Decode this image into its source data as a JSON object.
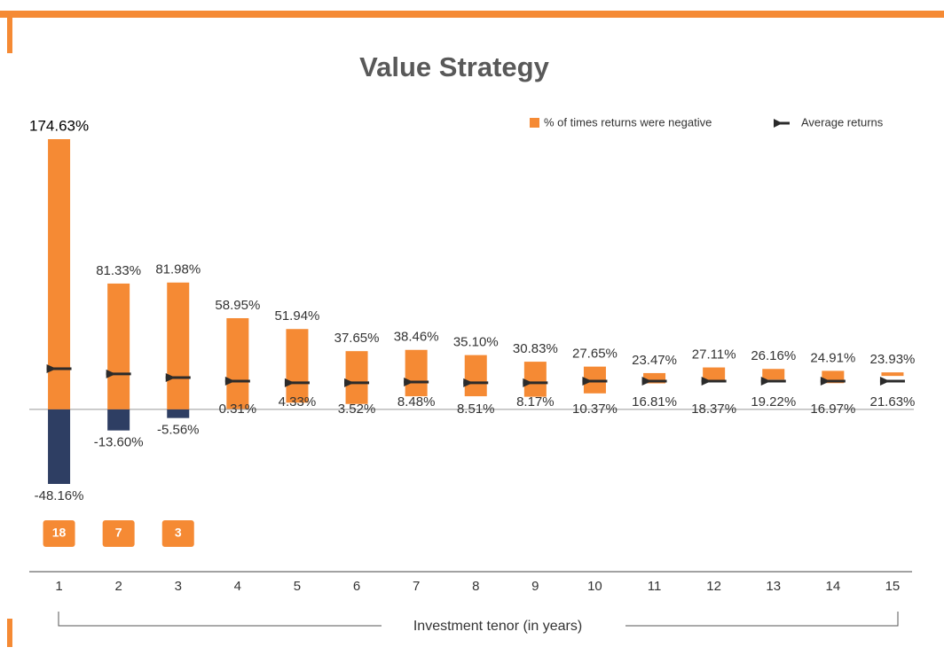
{
  "chart_data": {
    "type": "range_bar",
    "title": "Value Strategy",
    "x_label": "Investment tenor (in years)",
    "categories": [
      "1",
      "2",
      "3",
      "4",
      "5",
      "6",
      "7",
      "8",
      "9",
      "10",
      "11",
      "12",
      "13",
      "14",
      "15"
    ],
    "highs": [
      174.63,
      81.33,
      81.98,
      58.95,
      51.94,
      37.65,
      38.46,
      35.1,
      30.83,
      27.65,
      23.47,
      27.11,
      26.16,
      24.91,
      23.93
    ],
    "high_labels": [
      "174.63%",
      "81.33%",
      "81.98%",
      "58.95%",
      "51.94%",
      "37.65%",
      "38.46%",
      "35.10%",
      "30.83%",
      "27.65%",
      "23.47%",
      "27.11%",
      "26.16%",
      "24.91%",
      "23.93%"
    ],
    "lows": [
      -48.16,
      -13.6,
      -5.56,
      0.31,
      4.33,
      3.52,
      8.48,
      8.51,
      8.17,
      10.37,
      16.81,
      18.37,
      19.22,
      16.97,
      21.63
    ],
    "low_labels": [
      "-48.16%",
      "-13.60%",
      "-5.56%",
      "0.31%",
      "4.33%",
      "3.52%",
      "8.48%",
      "8.51%",
      "8.17%",
      "10.37%",
      "16.81%",
      "18.37%",
      "19.22%",
      "16.97%",
      "21.63%"
    ],
    "bar_color": "#f58a34",
    "negative_color": "#2e3e63",
    "series": [
      {
        "name": "% of times returns were negative",
        "color": "#f58a34",
        "values": [
          18,
          7,
          3,
          null,
          null,
          null,
          null,
          null,
          null,
          null,
          null,
          null,
          null,
          null,
          null
        ]
      },
      {
        "name": "Average returns",
        "color": "#2b2b2b",
        "values": [
          26.3,
          22.9,
          20.6,
          18.3,
          17.2,
          17.2,
          17.7,
          17.2,
          17.2,
          18.3,
          18.3,
          18.3,
          18.3,
          18.3,
          18.3
        ]
      }
    ]
  }
}
